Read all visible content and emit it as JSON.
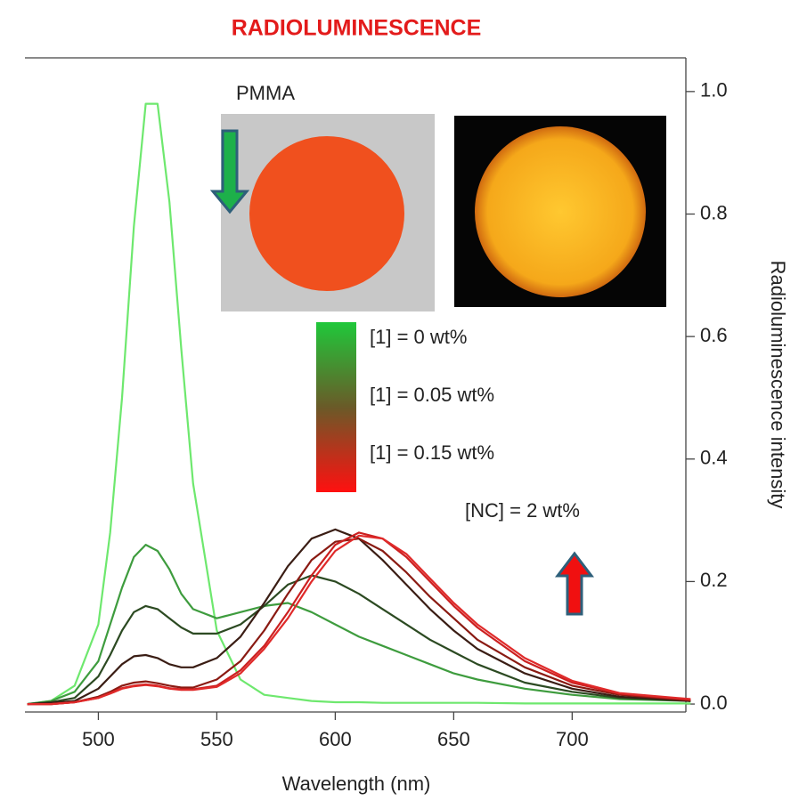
{
  "chart_data": {
    "type": "line",
    "title": "RADIOLUMINESCENCE",
    "xlabel": "Wavelength (nm)",
    "ylabel": "Radioluminescence intensity",
    "x": [
      470,
      480,
      490,
      500,
      505,
      510,
      515,
      520,
      525,
      530,
      535,
      540,
      550,
      560,
      570,
      580,
      590,
      600,
      610,
      620,
      630,
      640,
      650,
      660,
      680,
      700,
      720,
      750
    ],
    "series": [
      {
        "color": "#6ee86e",
        "values": [
          0,
          0.005,
          0.03,
          0.13,
          0.28,
          0.5,
          0.78,
          0.98,
          0.98,
          0.82,
          0.58,
          0.36,
          0.12,
          0.04,
          0.015,
          0.01,
          0.005,
          0.003,
          0.003,
          0.002,
          0.002,
          0.002,
          0.002,
          0.002,
          0.001,
          0.001,
          0.001,
          0.001
        ]
      },
      {
        "color": "#3e9c3e",
        "values": [
          0,
          0.005,
          0.02,
          0.07,
          0.13,
          0.19,
          0.24,
          0.26,
          0.25,
          0.22,
          0.18,
          0.155,
          0.14,
          0.15,
          0.16,
          0.165,
          0.15,
          0.13,
          0.11,
          0.095,
          0.08,
          0.065,
          0.05,
          0.04,
          0.025,
          0.015,
          0.008,
          0.005
        ]
      },
      {
        "color": "#2c4a22",
        "values": [
          0,
          0.003,
          0.01,
          0.045,
          0.08,
          0.12,
          0.15,
          0.16,
          0.155,
          0.14,
          0.125,
          0.115,
          0.115,
          0.13,
          0.16,
          0.195,
          0.21,
          0.2,
          0.18,
          0.155,
          0.13,
          0.105,
          0.085,
          0.065,
          0.035,
          0.02,
          0.01,
          0.005
        ]
      },
      {
        "color": "#3a1d14",
        "values": [
          0,
          0.002,
          0.005,
          0.025,
          0.045,
          0.065,
          0.078,
          0.08,
          0.075,
          0.065,
          0.06,
          0.06,
          0.075,
          0.11,
          0.165,
          0.225,
          0.27,
          0.285,
          0.27,
          0.235,
          0.195,
          0.155,
          0.12,
          0.09,
          0.05,
          0.025,
          0.012,
          0.005
        ]
      },
      {
        "color": "#8a1a12",
        "values": [
          0,
          0,
          0.003,
          0.012,
          0.02,
          0.03,
          0.035,
          0.037,
          0.034,
          0.03,
          0.027,
          0.027,
          0.04,
          0.07,
          0.12,
          0.18,
          0.235,
          0.265,
          0.27,
          0.25,
          0.215,
          0.175,
          0.14,
          0.105,
          0.06,
          0.03,
          0.015,
          0.006
        ]
      },
      {
        "color": "#cc2020",
        "values": [
          0,
          0,
          0.003,
          0.01,
          0.018,
          0.026,
          0.03,
          0.032,
          0.03,
          0.026,
          0.024,
          0.024,
          0.03,
          0.055,
          0.095,
          0.15,
          0.21,
          0.26,
          0.28,
          0.27,
          0.24,
          0.2,
          0.16,
          0.125,
          0.07,
          0.035,
          0.017,
          0.007
        ]
      },
      {
        "color": "#e02a2a",
        "values": [
          0,
          0,
          0.003,
          0.01,
          0.017,
          0.025,
          0.029,
          0.031,
          0.029,
          0.025,
          0.023,
          0.023,
          0.028,
          0.05,
          0.09,
          0.14,
          0.2,
          0.25,
          0.275,
          0.27,
          0.245,
          0.205,
          0.165,
          0.13,
          0.075,
          0.038,
          0.018,
          0.008
        ]
      }
    ],
    "xlim": [
      469,
      748
    ],
    "ylim": [
      -0.013,
      1.055
    ],
    "xticks": [
      500,
      550,
      600,
      650,
      700
    ],
    "yticks": [
      {
        "value": 0,
        "label": "0.0"
      },
      {
        "value": 0.2,
        "label": "0.2"
      },
      {
        "value": 0.4,
        "label": "0.4"
      },
      {
        "value": 0.6,
        "label": "0.6"
      },
      {
        "value": 0.8,
        "label": "0.8"
      },
      {
        "value": 1,
        "label": "1.0"
      }
    ],
    "yaxis_side": "right",
    "annotations": [
      "PMMA",
      "[1] = 0 wt%",
      "[1] = 0.05 wt%",
      "[1] = 0.15 wt%",
      "[NC] = 2 wt%"
    ]
  }
}
